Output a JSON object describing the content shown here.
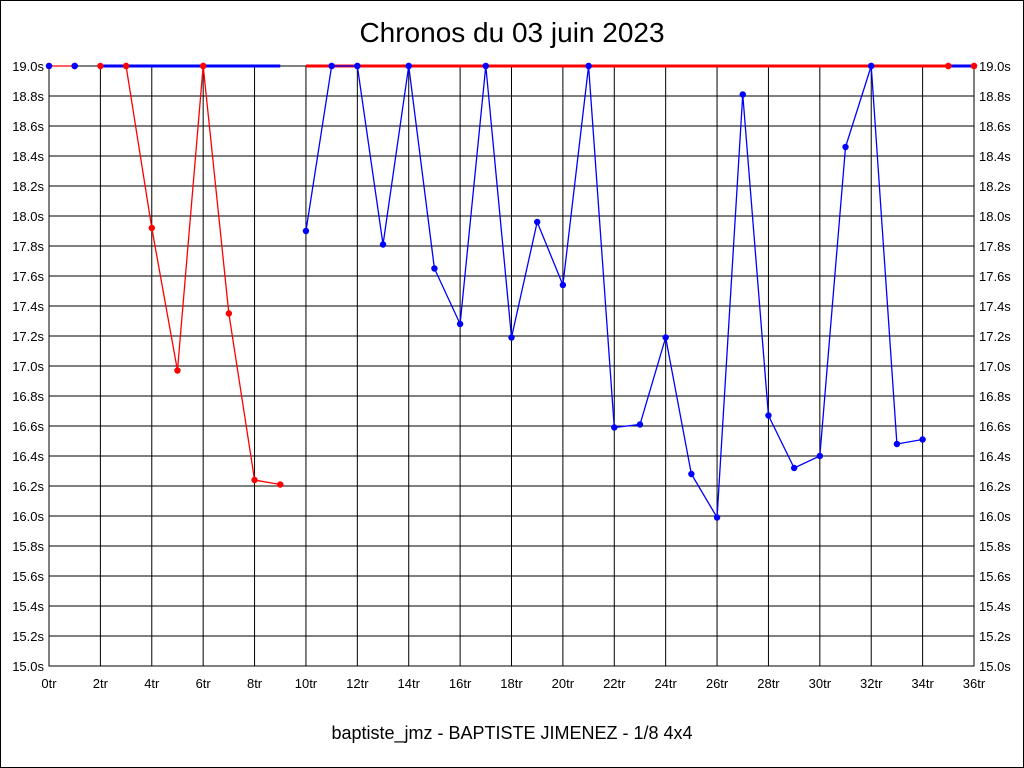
{
  "title": "Chronos du 03 juin 2023",
  "footer": "baptiste_jmz - BAPTISTE JIMENEZ - 1/8 4x4",
  "chart_data": {
    "type": "line",
    "title": "Chronos du 03 juin 2023",
    "xlabel": "",
    "ylabel": "",
    "xlim": [
      0,
      36
    ],
    "ylim": [
      15.0,
      19.0
    ],
    "grid": true,
    "x_tick_values": [
      0,
      2,
      4,
      6,
      8,
      10,
      12,
      14,
      16,
      18,
      20,
      22,
      24,
      26,
      28,
      30,
      32,
      34,
      36
    ],
    "x_tick_labels": [
      "0tr",
      "2tr",
      "4tr",
      "6tr",
      "8tr",
      "10tr",
      "12tr",
      "14tr",
      "16tr",
      "18tr",
      "20tr",
      "22tr",
      "24tr",
      "26tr",
      "28tr",
      "30tr",
      "32tr",
      "34tr",
      "36tr"
    ],
    "y_tick_values": [
      15.0,
      15.2,
      15.4,
      15.6,
      15.8,
      16.0,
      16.2,
      16.4,
      16.6,
      16.8,
      17.0,
      17.2,
      17.4,
      17.6,
      17.8,
      18.0,
      18.2,
      18.4,
      18.6,
      18.8,
      19.0
    ],
    "y_tick_labels": [
      "15.0s",
      "15.2s",
      "15.4s",
      "15.6s",
      "15.8s",
      "16.0s",
      "16.2s",
      "16.4s",
      "16.6s",
      "16.8s",
      "17.0s",
      "17.2s",
      "17.4s",
      "17.6s",
      "17.8s",
      "18.0s",
      "18.2s",
      "18.4s",
      "18.6s",
      "18.8s",
      "19.0s"
    ],
    "series": [
      {
        "color": "#ff0000",
        "segments": [
          {
            "line": true,
            "points": [
              [
                0,
                19.0
              ],
              [
                1,
                19.0
              ]
            ]
          },
          {
            "line": true,
            "points": [
              [
                3,
                19.0
              ],
              [
                4,
                17.92
              ],
              [
                5,
                16.97
              ],
              [
                6,
                19.0
              ],
              [
                7,
                17.35
              ],
              [
                8,
                16.24
              ],
              [
                9,
                16.21
              ]
            ]
          },
          {
            "line": true,
            "markers": false,
            "points": [
              [
                10,
                19.0
              ],
              [
                35,
                19.0
              ]
            ]
          },
          {
            "line": true,
            "points": [
              [
                35,
                19.0
              ],
              [
                36,
                19.0
              ]
            ]
          }
        ]
      },
      {
        "color": "#0000ff",
        "segments": [
          {
            "line": false,
            "points": [
              [
                1,
                19.0
              ]
            ]
          },
          {
            "line": true,
            "markers": false,
            "points": [
              [
                2,
                19.0
              ],
              [
                9,
                19.0
              ]
            ]
          },
          {
            "line": true,
            "points": [
              [
                10,
                17.9
              ],
              [
                11,
                19.0
              ],
              [
                12,
                19.0
              ],
              [
                13,
                17.81
              ],
              [
                14,
                19.0
              ],
              [
                15,
                17.65
              ],
              [
                16,
                17.28
              ],
              [
                17,
                19.0
              ],
              [
                18,
                17.19
              ],
              [
                19,
                17.96
              ],
              [
                20,
                17.54
              ],
              [
                21,
                19.0
              ],
              [
                22,
                16.59
              ],
              [
                23,
                16.61
              ],
              [
                24,
                17.19
              ],
              [
                25,
                16.28
              ],
              [
                26,
                15.99
              ],
              [
                27,
                18.81
              ],
              [
                28,
                16.67
              ],
              [
                29,
                16.32
              ],
              [
                30,
                16.4
              ],
              [
                31,
                18.46
              ],
              [
                32,
                19.0
              ],
              [
                33,
                16.48
              ],
              [
                34,
                16.51
              ]
            ]
          },
          {
            "line": true,
            "markers": false,
            "points": [
              [
                35,
                19.0
              ],
              [
                36,
                19.0
              ]
            ]
          }
        ]
      }
    ],
    "overlay_markers": [
      {
        "color": "#ff0000",
        "points": [
          [
            2,
            19.0
          ],
          [
            3,
            19.0
          ],
          [
            6,
            19.0
          ],
          [
            35,
            19.0
          ],
          [
            36,
            19.0
          ]
        ]
      },
      {
        "color": "#0000ff",
        "points": [
          [
            0,
            19.0
          ],
          [
            1,
            19.0
          ],
          [
            11,
            19.0
          ],
          [
            12,
            19.0
          ],
          [
            14,
            19.0
          ],
          [
            17,
            19.0
          ],
          [
            21,
            19.0
          ],
          [
            32,
            19.0
          ]
        ]
      }
    ]
  }
}
